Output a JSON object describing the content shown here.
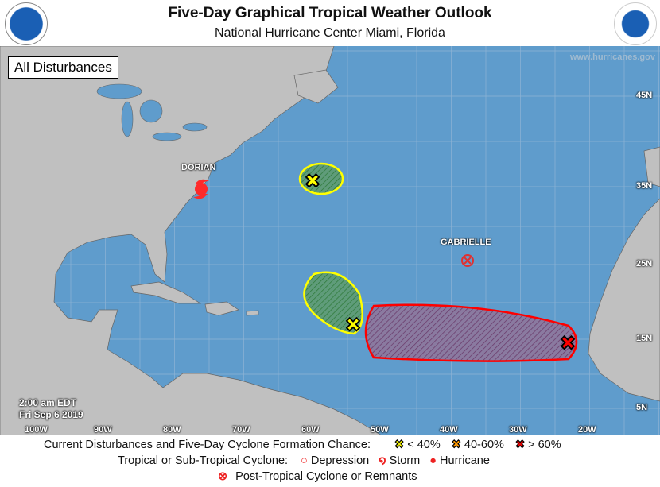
{
  "header": {
    "title": "Five-Day Graphical Tropical Weather Outlook",
    "subtitle": "National Hurricane Center  Miami, Florida",
    "left_logo": "NOAA",
    "right_logo": "NATIONAL WEATHER SERVICE"
  },
  "map": {
    "view_label": "All Disturbances",
    "website": "www.hurricanes.gov",
    "timestamp_time": "2:00 am EDT",
    "timestamp_date": "Fri Sep 6 2019",
    "lat_labels": [
      "45N",
      "35N",
      "25N",
      "15N",
      "5N"
    ],
    "lon_labels": [
      "100W",
      "90W",
      "80W",
      "70W",
      "60W",
      "50W",
      "40W",
      "30W",
      "20W"
    ],
    "storms": [
      {
        "name": "DORIAN",
        "type": "hurricane"
      },
      {
        "name": "GABRIELLE",
        "type": "post-tropical"
      }
    ],
    "disturbances": [
      {
        "chance": "< 40%",
        "color": "#ffff00"
      },
      {
        "chance": "< 40%",
        "color": "#ffff00"
      },
      {
        "chance": "> 60%",
        "color": "#ff0000"
      }
    ],
    "colors": {
      "ocean": "#5f9ccc",
      "land": "#c0c0c0",
      "low": "#ffff00",
      "medium": "#ff9900",
      "high": "#ff0000"
    }
  },
  "legend": {
    "row1_label": "Current Disturbances and Five-Day Cyclone Formation Chance:",
    "low": "< 40%",
    "medium": "40-60%",
    "high": "> 60%",
    "row2_label": "Tropical or Sub-Tropical Cyclone:",
    "depression": "Depression",
    "storm": "Storm",
    "hurricane": "Hurricane",
    "row3_label": "Post-Tropical Cyclone or Remnants"
  }
}
